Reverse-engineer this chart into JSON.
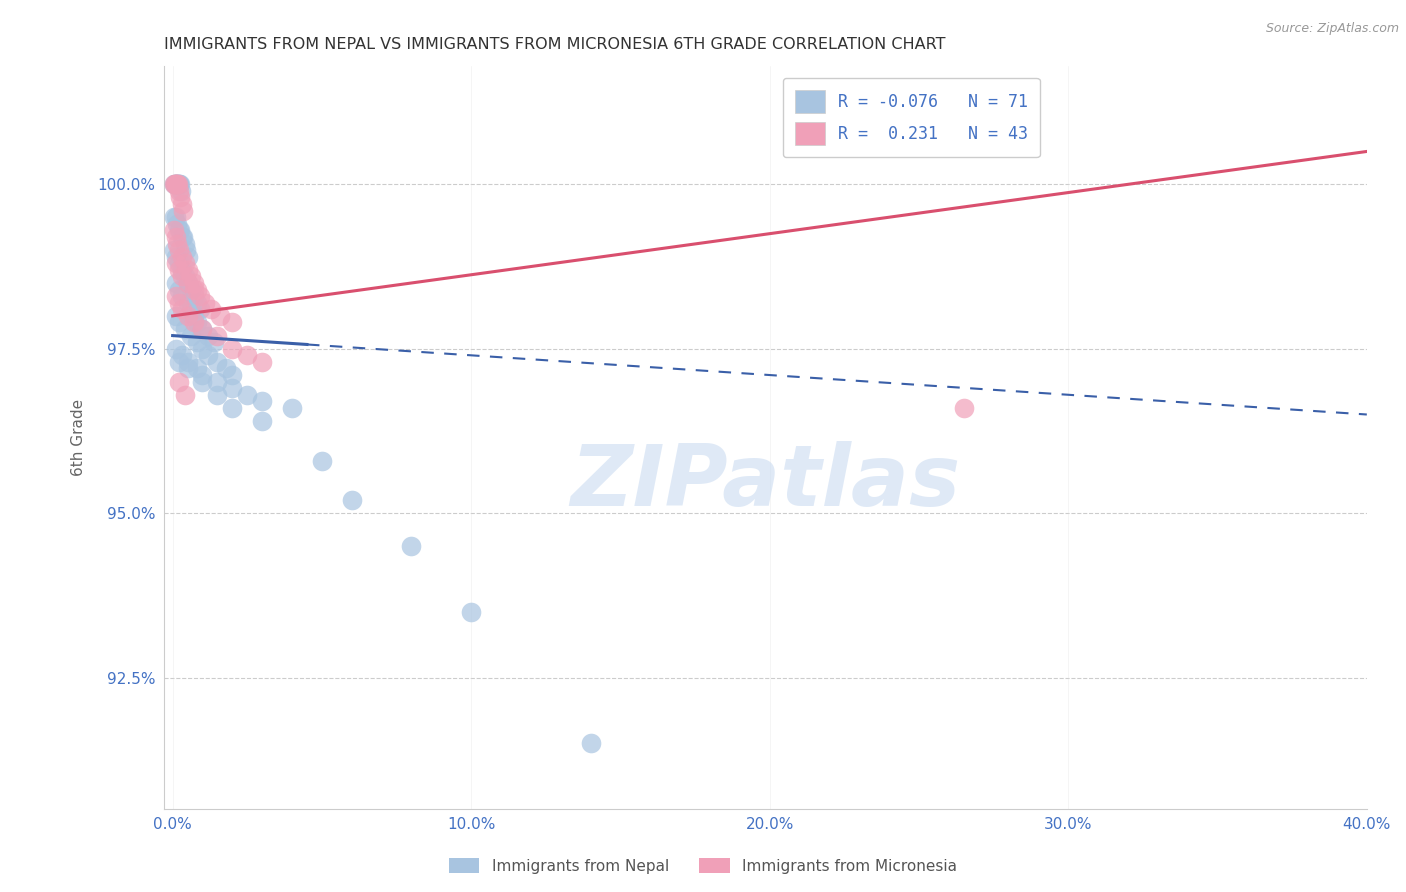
{
  "title": "IMMIGRANTS FROM NEPAL VS IMMIGRANTS FROM MICRONESIA 6TH GRADE CORRELATION CHART",
  "source": "Source: ZipAtlas.com",
  "ylabel": "6th Grade",
  "x_tick_labels": [
    "0.0%",
    "10.0%",
    "20.0%",
    "30.0%",
    "40.0%"
  ],
  "x_tick_vals": [
    0.0,
    10.0,
    20.0,
    30.0,
    40.0
  ],
  "y_tick_labels": [
    "92.5%",
    "95.0%",
    "97.5%",
    "100.0%"
  ],
  "y_tick_vals": [
    92.5,
    95.0,
    97.5,
    100.0
  ],
  "xlim": [
    -0.3,
    40.0
  ],
  "ylim": [
    90.5,
    101.8
  ],
  "legend_labels": [
    "Immigrants from Nepal",
    "Immigrants from Micronesia"
  ],
  "legend_r": [
    "R = -0.076",
    "R =  0.231"
  ],
  "legend_n": [
    "N = 71",
    "N = 43"
  ],
  "nepal_color": "#a8c4e0",
  "micronesia_color": "#f0a0b8",
  "nepal_line_color": "#3a5fa8",
  "micronesia_line_color": "#d94f6e",
  "watermark": "ZIPatlas",
  "watermark_color": "#c5d8f0",
  "nepal_x": [
    0.05,
    0.08,
    0.1,
    0.12,
    0.15,
    0.18,
    0.2,
    0.22,
    0.25,
    0.28,
    0.05,
    0.1,
    0.15,
    0.2,
    0.25,
    0.3,
    0.35,
    0.4,
    0.45,
    0.5,
    0.05,
    0.1,
    0.2,
    0.3,
    0.4,
    0.5,
    0.6,
    0.7,
    0.8,
    0.9,
    0.1,
    0.2,
    0.3,
    0.5,
    0.6,
    0.7,
    0.8,
    1.0,
    1.2,
    1.4,
    0.1,
    0.2,
    0.4,
    0.6,
    0.8,
    1.0,
    1.2,
    1.5,
    1.8,
    2.0,
    0.1,
    0.3,
    0.5,
    0.8,
    1.0,
    1.5,
    2.0,
    2.5,
    3.0,
    4.0,
    0.2,
    0.5,
    1.0,
    1.5,
    2.0,
    3.0,
    5.0,
    6.0,
    8.0,
    10.0,
    14.0
  ],
  "nepal_y": [
    100.0,
    100.0,
    100.0,
    100.0,
    100.0,
    100.0,
    100.0,
    100.0,
    100.0,
    99.9,
    99.5,
    99.5,
    99.4,
    99.3,
    99.3,
    99.2,
    99.2,
    99.1,
    99.0,
    98.9,
    99.0,
    98.9,
    98.8,
    98.7,
    98.6,
    98.5,
    98.4,
    98.3,
    98.2,
    98.1,
    98.5,
    98.4,
    98.3,
    98.2,
    98.1,
    98.0,
    97.9,
    97.8,
    97.7,
    97.6,
    98.0,
    97.9,
    97.8,
    97.7,
    97.6,
    97.5,
    97.4,
    97.3,
    97.2,
    97.1,
    97.5,
    97.4,
    97.3,
    97.2,
    97.1,
    97.0,
    96.9,
    96.8,
    96.7,
    96.6,
    97.3,
    97.2,
    97.0,
    96.8,
    96.6,
    96.4,
    95.8,
    95.2,
    94.5,
    93.5,
    91.5
  ],
  "micronesia_x": [
    0.05,
    0.08,
    0.1,
    0.12,
    0.15,
    0.18,
    0.2,
    0.25,
    0.3,
    0.35,
    0.05,
    0.1,
    0.15,
    0.2,
    0.3,
    0.4,
    0.5,
    0.6,
    0.7,
    0.8,
    0.1,
    0.2,
    0.3,
    0.5,
    0.7,
    0.9,
    1.1,
    1.3,
    1.6,
    2.0,
    0.1,
    0.2,
    0.3,
    0.5,
    0.7,
    1.0,
    1.5,
    2.0,
    2.5,
    3.0,
    0.2,
    0.4,
    26.5
  ],
  "micronesia_y": [
    100.0,
    100.0,
    100.0,
    100.0,
    100.0,
    100.0,
    99.9,
    99.8,
    99.7,
    99.6,
    99.3,
    99.2,
    99.1,
    99.0,
    98.9,
    98.8,
    98.7,
    98.6,
    98.5,
    98.4,
    98.8,
    98.7,
    98.6,
    98.5,
    98.4,
    98.3,
    98.2,
    98.1,
    98.0,
    97.9,
    98.3,
    98.2,
    98.1,
    98.0,
    97.9,
    97.8,
    97.7,
    97.5,
    97.4,
    97.3,
    97.0,
    96.8,
    96.6
  ],
  "nepal_line_x0": 0.0,
  "nepal_line_x1": 40.0,
  "nepal_line_y0": 97.7,
  "nepal_line_y1": 96.5,
  "nepal_solid_end": 4.5,
  "mic_line_x0": 0.0,
  "mic_line_x1": 40.0,
  "mic_line_y0": 98.0,
  "mic_line_y1": 100.5
}
